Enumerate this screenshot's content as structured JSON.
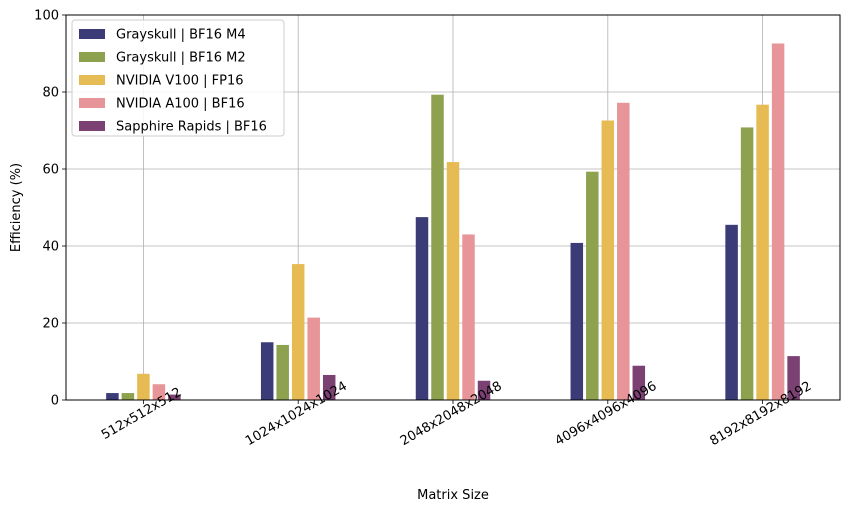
{
  "chart_data": {
    "type": "bar",
    "xlabel": "Matrix Size",
    "ylabel": "Efficiency (%)",
    "ylim": [
      0,
      100
    ],
    "yticks": [
      0,
      20,
      40,
      60,
      80,
      100
    ],
    "grid": true,
    "legend_position": "top-left",
    "categories": [
      "512x512x512",
      "1024x1024x1024",
      "2048x2048x2048",
      "4096x4096x4096",
      "8192x8192x8192"
    ],
    "series": [
      {
        "name": "Grayskull | BF16 M4",
        "color": "#3b3b78",
        "values": [
          1.8,
          15.0,
          47.5,
          40.8,
          45.5
        ]
      },
      {
        "name": "Grayskull | BF16 M2",
        "color": "#8ea14f",
        "values": [
          1.8,
          14.3,
          79.3,
          59.3,
          70.8
        ]
      },
      {
        "name": "NVIDIA V100 | FP16",
        "color": "#e6bb53",
        "values": [
          6.8,
          35.3,
          61.8,
          72.6,
          76.7
        ]
      },
      {
        "name": "NVIDIA A100 | BF16",
        "color": "#e8959a",
        "values": [
          4.1,
          21.4,
          43.0,
          77.2,
          92.6
        ]
      },
      {
        "name": "Sapphire Rapids | BF16",
        "color": "#7b4173",
        "values": [
          1.4,
          6.5,
          5.0,
          8.9,
          11.4
        ]
      }
    ]
  }
}
